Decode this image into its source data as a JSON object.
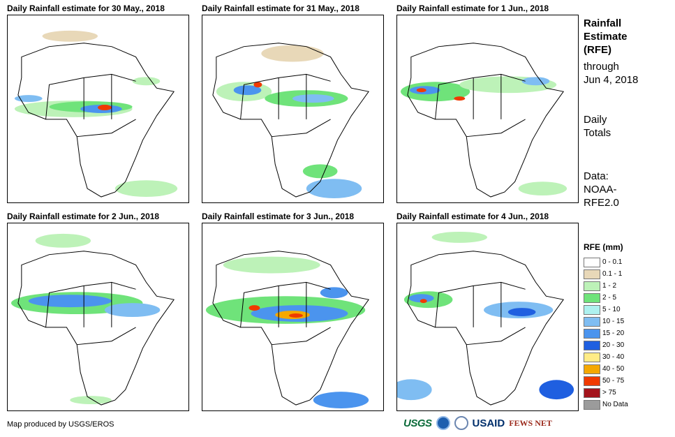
{
  "panels": [
    {
      "title": "Daily Rainfall estimate for 30 May., 2018"
    },
    {
      "title": "Daily Rainfall estimate for 31 May., 2018"
    },
    {
      "title": "Daily Rainfall estimate for 1 Jun., 2018"
    },
    {
      "title": "Daily Rainfall estimate for 2 Jun., 2018"
    },
    {
      "title": "Daily Rainfall estimate for 3 Jun., 2018"
    },
    {
      "title": "Daily Rainfall estimate for 4 Jun., 2018"
    }
  ],
  "side": {
    "title_line1": "Rainfall",
    "title_line2": "Estimate",
    "title_line3": "(RFE)",
    "through_line1": "through",
    "through_line2": "Jun 4, 2018",
    "totals_line1": "Daily",
    "totals_line2": "Totals",
    "data_line1": "Data:",
    "data_line2": "NOAA-",
    "data_line3": "RFE2.0"
  },
  "legend": {
    "title": "RFE (mm)",
    "items": [
      {
        "label": "0 - 0.1",
        "color": "#ffffff"
      },
      {
        "label": "0.1 - 1",
        "color": "#e8d8b8"
      },
      {
        "label": "1 - 2",
        "color": "#bdf2b8"
      },
      {
        "label": "2 - 5",
        "color": "#6fe37a"
      },
      {
        "label": "5 - 10",
        "color": "#aef1ef"
      },
      {
        "label": "10 - 15",
        "color": "#7fbdf2"
      },
      {
        "label": "15 - 20",
        "color": "#4b94ee"
      },
      {
        "label": "20 - 30",
        "color": "#1f5fe0"
      },
      {
        "label": "30 - 40",
        "color": "#ffec86"
      },
      {
        "label": "40 - 50",
        "color": "#f5a800"
      },
      {
        "label": "50 - 75",
        "color": "#f03a00"
      },
      {
        "label": "> 75",
        "color": "#a3131b"
      },
      {
        "label": "No Data",
        "color": "#9b9b9b"
      }
    ]
  },
  "footer": {
    "credit": "Map produced by USGS/EROS",
    "logo_usgs": "USGS",
    "logo_usaid": "USAID",
    "logo_fews": "FEWS NET"
  }
}
